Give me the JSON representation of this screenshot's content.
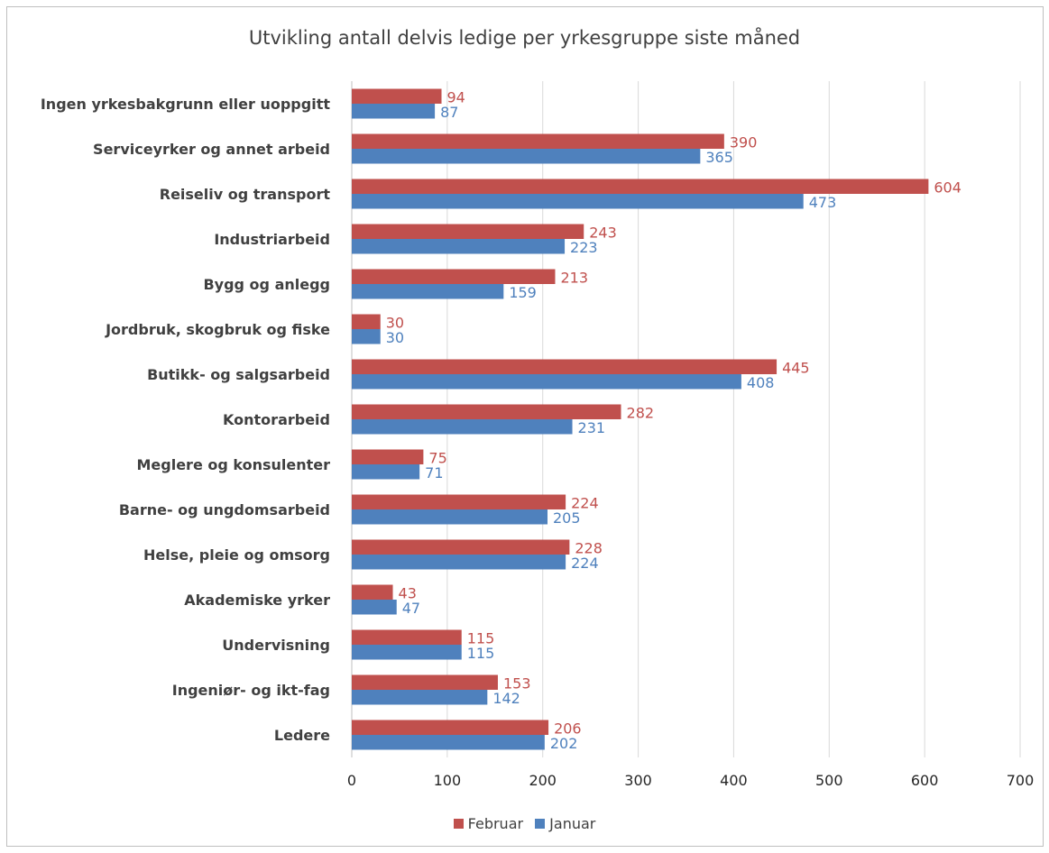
{
  "chart_data": {
    "type": "bar",
    "orientation": "horizontal",
    "title": "Utvikling antall delvis ledige per yrkesgruppe siste måned",
    "categories": [
      "Ingen yrkesbakgrunn eller uoppgitt",
      "Serviceyrker og annet arbeid",
      "Reiseliv og transport",
      "Industriarbeid",
      "Bygg og anlegg",
      "Jordbruk, skogbruk og fiske",
      "Butikk- og salgsarbeid",
      "Kontorarbeid",
      "Meglere og konsulenter",
      "Barne- og ungdomsarbeid",
      "Helse, pleie og omsorg",
      "Akademiske yrker",
      "Undervisning",
      "Ingeniør- og ikt-fag",
      "Ledere"
    ],
    "series": [
      {
        "name": "Februar",
        "color": "#c0504d",
        "values": [
          94,
          390,
          604,
          243,
          213,
          30,
          445,
          282,
          75,
          224,
          228,
          43,
          115,
          153,
          206
        ]
      },
      {
        "name": "Januar",
        "color": "#4f81bd",
        "values": [
          87,
          365,
          473,
          223,
          159,
          30,
          408,
          231,
          71,
          205,
          224,
          47,
          115,
          142,
          202
        ]
      }
    ],
    "xlim": [
      0,
      700
    ],
    "xticks": [
      "0",
      "100",
      "200",
      "300",
      "400",
      "500",
      "600",
      "700"
    ],
    "grid": true,
    "data_labels": true,
    "legend_position": "bottom"
  }
}
